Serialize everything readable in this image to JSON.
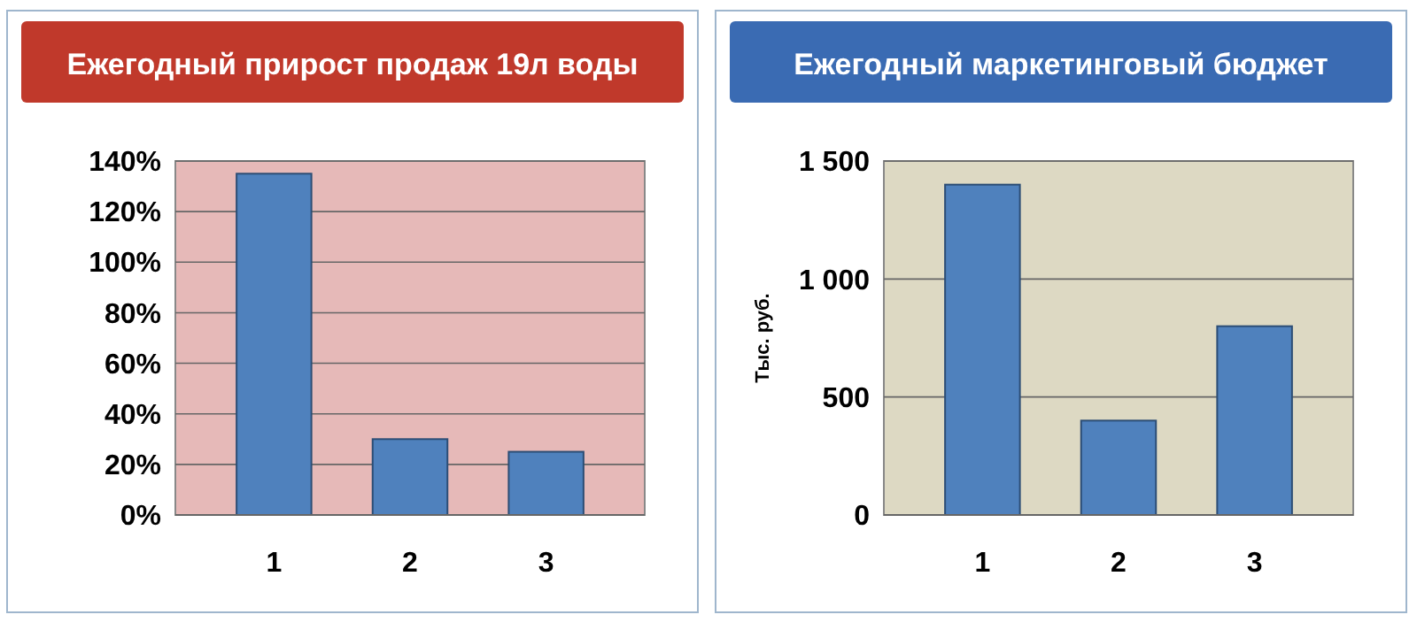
{
  "chart_data": [
    {
      "type": "bar",
      "title": "Ежегодный прирост продаж 19л воды",
      "categories": [
        "1",
        "2",
        "3"
      ],
      "values": [
        135,
        30,
        25
      ],
      "color": "#4f81bd",
      "ylim": [
        0,
        140
      ],
      "yticks": [
        {
          "value": 0,
          "label": "0%"
        },
        {
          "value": 20,
          "label": "20%"
        },
        {
          "value": 40,
          "label": "40%"
        },
        {
          "value": 60,
          "label": "60%"
        },
        {
          "value": 80,
          "label": "80%"
        },
        {
          "value": 100,
          "label": "100%"
        },
        {
          "value": 120,
          "label": "120%"
        },
        {
          "value": 140,
          "label": "140%"
        }
      ],
      "grid": true
    },
    {
      "type": "bar",
      "title": "Ежегодный маркетинговый бюджет",
      "ylabel": "Тыс. руб.",
      "categories": [
        "1",
        "2",
        "3"
      ],
      "values": [
        1400,
        400,
        800
      ],
      "color": "#4f81bd",
      "ylim": [
        0,
        1500
      ],
      "yticks": [
        0,
        500,
        {
          "value": 1000,
          "label": "1 000"
        },
        {
          "value": 1500,
          "label": "1 500"
        }
      ],
      "grid": true
    }
  ]
}
